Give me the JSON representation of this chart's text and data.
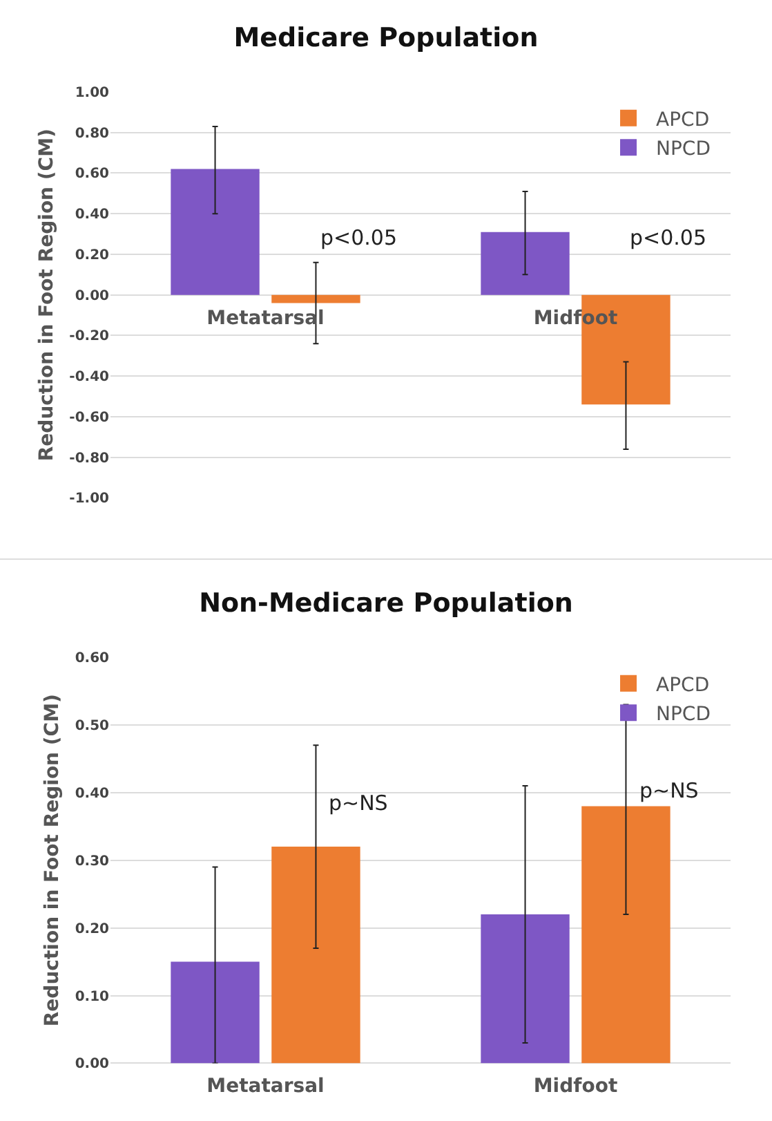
{
  "chart_data": [
    {
      "type": "bar",
      "title": "Medicare Population",
      "ylabel": "Reduction in Foot Region (CM)",
      "categories": [
        "Metatarsal",
        "Midfoot"
      ],
      "series": [
        {
          "name": "NPCD",
          "color": "#7e57c5",
          "values": [
            0.62,
            0.31
          ],
          "errors": [
            [
              0.4,
              0.83
            ],
            [
              0.1,
              0.51
            ]
          ]
        },
        {
          "name": "APCD",
          "color": "#ed7d31",
          "values": [
            -0.04,
            -0.54
          ],
          "errors": [
            [
              -0.24,
              0.16
            ],
            [
              -0.76,
              -0.33
            ]
          ]
        }
      ],
      "ylim": [
        -1,
        1
      ],
      "yticks": [
        {
          "value": -1,
          "label": "-1.00"
        },
        {
          "value": -0.8,
          "label": "-0.80"
        },
        {
          "value": -0.6,
          "label": "-0.60"
        },
        {
          "value": -0.4,
          "label": "-0.40"
        },
        {
          "value": -0.2,
          "label": "-0.20"
        },
        {
          "value": 0,
          "label": "0.00"
        },
        {
          "value": 0.2,
          "label": "0.20"
        },
        {
          "value": 0.4,
          "label": "0.40"
        },
        {
          "value": 0.6,
          "label": "0.60"
        },
        {
          "value": 0.8,
          "label": "0.80"
        },
        {
          "value": 1,
          "label": "1.00"
        }
      ],
      "grid": "y",
      "legend": "top right",
      "annotations": [
        "p<0.05",
        "p<0.05"
      ]
    },
    {
      "type": "bar",
      "title": "Non-Medicare Population",
      "ylabel": "Reduction in Foot Region (CM)",
      "categories": [
        "Metatarsal",
        "Midfoot"
      ],
      "series": [
        {
          "name": "NPCD",
          "color": "#7e57c5",
          "values": [
            0.15,
            0.22
          ],
          "errors": [
            [
              0.0,
              0.29
            ],
            [
              0.03,
              0.41
            ]
          ]
        },
        {
          "name": "APCD",
          "color": "#ed7d31",
          "values": [
            0.32,
            0.38
          ],
          "errors": [
            [
              0.17,
              0.47
            ],
            [
              0.22,
              0.53
            ]
          ]
        }
      ],
      "ylim": [
        0,
        0.6
      ],
      "yticks": [
        {
          "value": 0,
          "label": "0.00"
        },
        {
          "value": 0.1,
          "label": "0.10"
        },
        {
          "value": 0.2,
          "label": "0.20"
        },
        {
          "value": 0.3,
          "label": "0.30"
        },
        {
          "value": 0.4,
          "label": "0.40"
        },
        {
          "value": 0.5,
          "label": "0.50"
        },
        {
          "value": 0.6,
          "label": "0.60"
        }
      ],
      "grid": "y",
      "legend": "top right",
      "annotations": [
        "p~NS",
        "p~NS"
      ]
    }
  ]
}
